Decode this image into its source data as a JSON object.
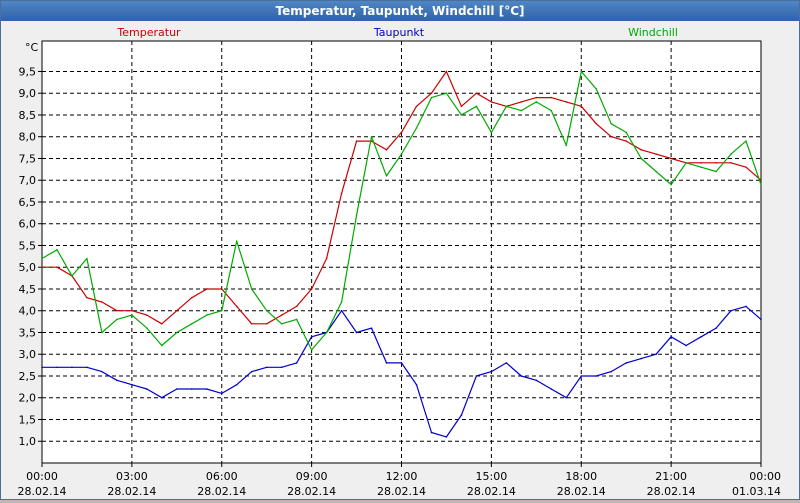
{
  "window": {
    "title": "Temperatur, Taupunkt, Windchill [°C]"
  },
  "chart_data": {
    "type": "line",
    "title": "Temperatur, Taupunkt, Windchill [°C]",
    "ylabel": "°C",
    "ylim": [
      0.5,
      10.2
    ],
    "xlim": [
      0,
      24
    ],
    "grid": true,
    "legend_placement": "top",
    "x_ticks": [
      {
        "x": 0,
        "time": "00:00",
        "date": "28.02.14"
      },
      {
        "x": 3,
        "time": "03:00",
        "date": "28.02.14"
      },
      {
        "x": 6,
        "time": "06:00",
        "date": "28.02.14"
      },
      {
        "x": 9,
        "time": "09:00",
        "date": "28.02.14"
      },
      {
        "x": 12,
        "time": "12:00",
        "date": "28.02.14"
      },
      {
        "x": 15,
        "time": "15:00",
        "date": "28.02.14"
      },
      {
        "x": 18,
        "time": "18:00",
        "date": "28.02.14"
      },
      {
        "x": 21,
        "time": "21:00",
        "date": "28.02.14"
      },
      {
        "x": 24,
        "time": "00:00",
        "date": "01.03.14"
      }
    ],
    "y_ticks": [
      {
        "value": 1.0,
        "label": "1,0"
      },
      {
        "value": 1.5,
        "label": "1,5"
      },
      {
        "value": 2.0,
        "label": "2,0"
      },
      {
        "value": 2.5,
        "label": "2,5"
      },
      {
        "value": 3.0,
        "label": "3,0"
      },
      {
        "value": 3.5,
        "label": "3,5"
      },
      {
        "value": 4.0,
        "label": "4,0"
      },
      {
        "value": 4.5,
        "label": "4,5"
      },
      {
        "value": 5.0,
        "label": "5,0"
      },
      {
        "value": 5.5,
        "label": "5,5"
      },
      {
        "value": 6.0,
        "label": "6,0"
      },
      {
        "value": 6.5,
        "label": "6,5"
      },
      {
        "value": 7.0,
        "label": "7,0"
      },
      {
        "value": 7.5,
        "label": "7,5"
      },
      {
        "value": 8.0,
        "label": "8,0"
      },
      {
        "value": 8.5,
        "label": "8,5"
      },
      {
        "value": 9.0,
        "label": "9,0"
      },
      {
        "value": 9.5,
        "label": "9,5"
      }
    ],
    "series": [
      {
        "name": "Temperatur",
        "color": "#cc0000",
        "x": [
          0,
          0.5,
          1,
          1.5,
          2,
          2.5,
          3,
          3.5,
          4,
          4.5,
          5,
          5.5,
          6,
          6.5,
          7,
          7.5,
          8,
          8.5,
          9,
          9.5,
          10,
          10.5,
          11,
          11.5,
          12,
          12.5,
          13,
          13.5,
          14,
          14.5,
          15,
          15.5,
          16,
          16.5,
          17,
          17.5,
          18,
          18.5,
          19,
          19.5,
          20,
          20.5,
          21,
          21.5,
          22,
          22.5,
          23,
          23.5,
          24
        ],
        "values": [
          5.0,
          5.0,
          4.8,
          4.3,
          4.2,
          4.0,
          4.0,
          3.9,
          3.7,
          4.0,
          4.3,
          4.5,
          4.5,
          4.1,
          3.7,
          3.7,
          3.9,
          4.1,
          4.5,
          5.2,
          6.7,
          7.9,
          7.9,
          7.7,
          8.1,
          8.7,
          9.0,
          9.5,
          8.7,
          9.0,
          8.8,
          8.7,
          8.8,
          8.9,
          8.9,
          8.8,
          8.7,
          8.3,
          8.0,
          7.9,
          7.7,
          7.6,
          7.5,
          7.4,
          7.4,
          7.4,
          7.4,
          7.3,
          7.0
        ]
      },
      {
        "name": "Taupunkt",
        "color": "#0000cc",
        "x": [
          0,
          0.5,
          1,
          1.5,
          2,
          2.5,
          3,
          3.5,
          4,
          4.5,
          5,
          5.5,
          6,
          6.5,
          7,
          7.5,
          8,
          8.5,
          9,
          9.5,
          10,
          10.5,
          11,
          11.5,
          12,
          12.5,
          13,
          13.5,
          14,
          14.5,
          15,
          15.5,
          16,
          16.5,
          17,
          17.5,
          18,
          18.5,
          19,
          19.5,
          20,
          20.5,
          21,
          21.5,
          22,
          22.5,
          23,
          23.5,
          24
        ],
        "values": [
          2.7,
          2.7,
          2.7,
          2.7,
          2.6,
          2.4,
          2.3,
          2.2,
          2.0,
          2.2,
          2.2,
          2.2,
          2.1,
          2.3,
          2.6,
          2.7,
          2.7,
          2.8,
          3.4,
          3.5,
          4.0,
          3.5,
          3.6,
          2.8,
          2.8,
          2.3,
          1.2,
          1.1,
          1.6,
          2.5,
          2.6,
          2.8,
          2.5,
          2.4,
          2.2,
          2.0,
          2.5,
          2.5,
          2.6,
          2.8,
          2.9,
          3.0,
          3.4,
          3.2,
          3.4,
          3.6,
          4.0,
          4.1,
          3.8
        ]
      },
      {
        "name": "Windchill",
        "color": "#00aa00",
        "x": [
          0,
          0.5,
          1,
          1.5,
          2,
          2.5,
          3,
          3.5,
          4,
          4.5,
          5,
          5.5,
          6,
          6.5,
          7,
          7.5,
          8,
          8.5,
          9,
          9.5,
          10,
          10.5,
          11,
          11.5,
          12,
          12.5,
          13,
          13.5,
          14,
          14.5,
          15,
          15.5,
          16,
          16.5,
          17,
          17.5,
          18,
          18.5,
          19,
          19.5,
          20,
          20.5,
          21,
          21.5,
          22,
          22.5,
          23,
          23.5,
          24
        ],
        "values": [
          5.2,
          5.4,
          4.8,
          5.2,
          3.5,
          3.8,
          3.9,
          3.6,
          3.2,
          3.5,
          3.7,
          3.9,
          4.0,
          5.6,
          4.5,
          4.0,
          3.7,
          3.8,
          3.1,
          3.5,
          4.2,
          6.2,
          8.0,
          7.1,
          7.6,
          8.2,
          8.9,
          9.0,
          8.5,
          8.7,
          8.1,
          8.7,
          8.6,
          8.8,
          8.6,
          7.8,
          9.5,
          9.1,
          8.3,
          8.1,
          7.5,
          7.2,
          6.9,
          7.4,
          7.3,
          7.2,
          7.6,
          7.9,
          6.9
        ]
      }
    ]
  }
}
